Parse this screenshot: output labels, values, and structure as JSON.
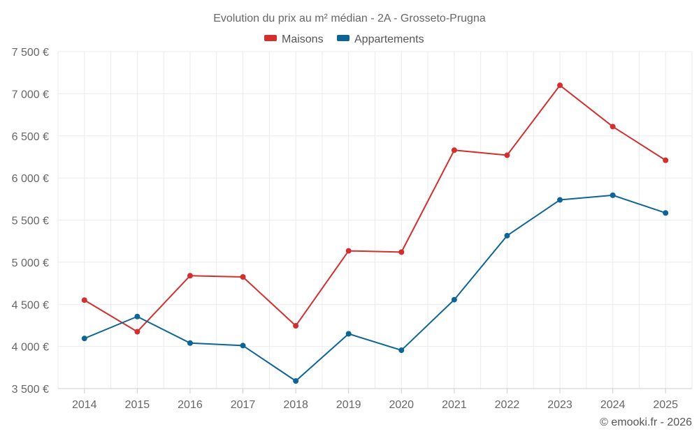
{
  "chart_data": {
    "type": "line",
    "title": "Evolution du prix au m² médian - 2A - Grosseto-Prugna",
    "categories": [
      "2014",
      "2015",
      "2016",
      "2017",
      "2018",
      "2019",
      "2020",
      "2021",
      "2022",
      "2023",
      "2024",
      "2025"
    ],
    "series": [
      {
        "name": "Maisons",
        "color": "#d32f2f",
        "values": [
          4550,
          4175,
          4840,
          4825,
          4245,
          5135,
          5120,
          6330,
          6270,
          7100,
          6610,
          6210
        ]
      },
      {
        "name": "Appartements",
        "color": "#0d6496",
        "values": [
          4095,
          4355,
          4040,
          4010,
          3590,
          4150,
          3955,
          4555,
          5315,
          5740,
          5795,
          5585
        ]
      }
    ],
    "ylim": [
      3500,
      7500
    ],
    "yticks": [
      3500,
      4000,
      4500,
      5000,
      5500,
      6000,
      6500,
      7000,
      7500
    ],
    "ytick_labels": [
      "3 500 €",
      "4 000 €",
      "4 500 €",
      "5 000 €",
      "5 500 €",
      "6 000 €",
      "6 500 €",
      "7 000 €",
      "7 500 €"
    ],
    "xlabel": "",
    "ylabel": "",
    "grid": true,
    "legend_position": "top-center"
  },
  "credit": "© emooki.fr - 2026"
}
